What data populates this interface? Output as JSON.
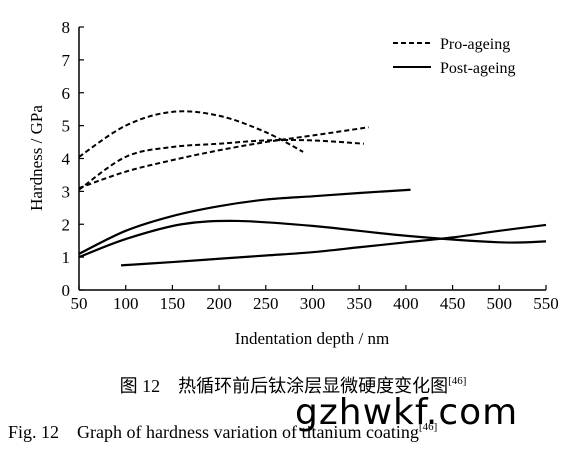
{
  "chart_data": {
    "type": "line",
    "xlabel": "Indentation depth / nm",
    "ylabel": "Hardness / GPa",
    "xlim": [
      50,
      550
    ],
    "ylim": [
      0,
      8
    ],
    "xticks": [
      50,
      100,
      150,
      200,
      250,
      300,
      350,
      400,
      450,
      500,
      550
    ],
    "yticks": [
      0,
      1,
      2,
      3,
      4,
      5,
      6,
      7,
      8
    ],
    "grid": false,
    "legend_position": "top-right",
    "legend": [
      {
        "label": "Pro-ageing",
        "style": "dashed"
      },
      {
        "label": "Post-ageing",
        "style": "solid"
      }
    ],
    "series": [
      {
        "group": "Pro-ageing",
        "style": "dashed",
        "x": [
          50,
          100,
          150,
          200,
          250,
          290
        ],
        "y": [
          4.05,
          5.0,
          5.42,
          5.3,
          4.8,
          4.2
        ]
      },
      {
        "group": "Pro-ageing",
        "style": "dashed",
        "x": [
          50,
          100,
          150,
          200,
          250,
          300,
          355
        ],
        "y": [
          3.05,
          4.05,
          4.35,
          4.45,
          4.55,
          4.55,
          4.45
        ]
      },
      {
        "group": "Pro-ageing",
        "style": "dashed",
        "x": [
          50,
          100,
          150,
          200,
          250,
          300,
          360
        ],
        "y": [
          3.1,
          3.6,
          3.95,
          4.25,
          4.5,
          4.7,
          4.95
        ]
      },
      {
        "group": "Post-ageing",
        "style": "solid",
        "x": [
          50,
          100,
          150,
          200,
          250,
          300,
          350,
          405
        ],
        "y": [
          1.1,
          1.8,
          2.25,
          2.55,
          2.75,
          2.85,
          2.95,
          3.05
        ]
      },
      {
        "group": "Post-ageing",
        "style": "solid",
        "x": [
          50,
          100,
          160,
          220,
          300,
          400,
          500,
          550
        ],
        "y": [
          1.0,
          1.55,
          2.0,
          2.1,
          1.95,
          1.65,
          1.45,
          1.48
        ]
      },
      {
        "group": "Post-ageing",
        "style": "solid",
        "x": [
          95,
          150,
          200,
          250,
          300,
          350,
          400,
          450,
          500,
          550
        ],
        "y": [
          0.75,
          0.85,
          0.95,
          1.05,
          1.15,
          1.3,
          1.45,
          1.6,
          1.8,
          1.98
        ]
      }
    ]
  },
  "caption": {
    "cn_prefix": "图 12",
    "cn_text": "热循环前后钛涂层显微硬度变化图",
    "cn_ref": "[46]",
    "en_prefix": "Fig. 12",
    "en_text": "Graph of hardness variation of titanium coating",
    "en_ref": "[46]"
  },
  "watermark": "gzhwkf.com"
}
